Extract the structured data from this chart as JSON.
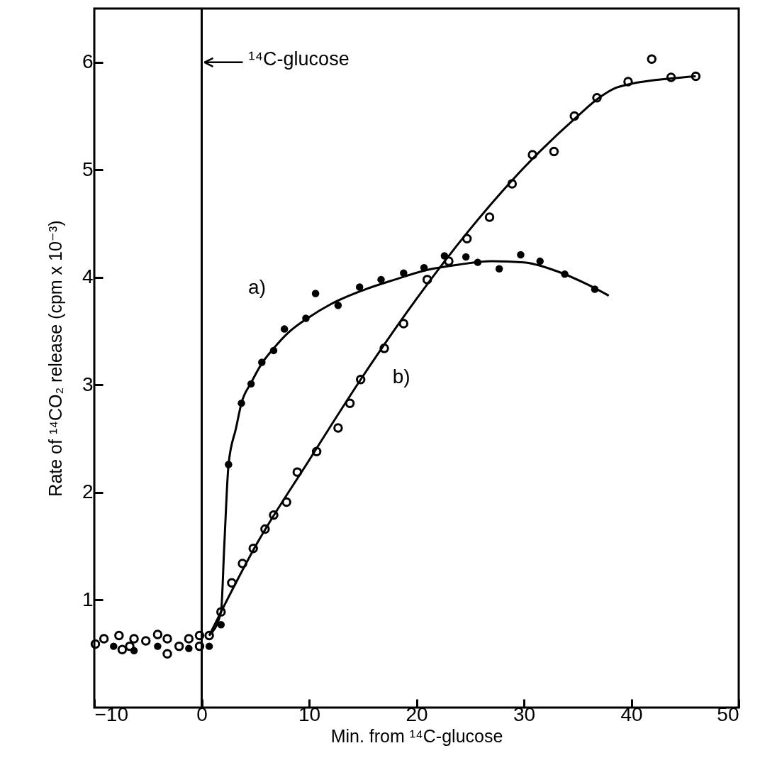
{
  "chart_data": {
    "type": "scatter",
    "xlabel": "Min. from ¹⁴C-glucose",
    "ylabel": "Rate of ¹⁴CO₂ release (cpm x 10⁻³)",
    "xlim": [
      -10,
      50
    ],
    "ylim": [
      0,
      6.5
    ],
    "xticks": [
      -10,
      0,
      10,
      20,
      30,
      40,
      50
    ],
    "yticks": [
      1,
      2,
      3,
      4,
      5,
      6
    ],
    "grid": false,
    "legend": false,
    "ref_lines": [
      {
        "axis": "x",
        "value": 0,
        "color": "#000000"
      }
    ],
    "annotations": [
      {
        "text": "¹⁴C-glucose",
        "x": 0,
        "y": 6
      }
    ],
    "series": [
      {
        "name": "a)",
        "marker": "circle",
        "color": "#000000",
        "x": [
          -8.2,
          -6.3,
          -4.1,
          -1.2,
          0.7,
          1.8,
          2.5,
          3.7,
          4.6,
          5.6,
          6.7,
          7.7,
          9.7,
          10.6,
          12.7,
          14.7,
          16.7,
          18.8,
          20.7,
          22.6,
          24.6,
          25.7,
          27.7,
          29.7,
          31.5,
          33.8,
          36.6
        ],
        "values": [
          0.57,
          0.53,
          0.57,
          0.55,
          0.57,
          0.77,
          2.26,
          2.83,
          3.01,
          3.21,
          3.32,
          3.52,
          3.62,
          3.85,
          3.74,
          3.91,
          3.98,
          4.04,
          4.09,
          4.2,
          4.19,
          4.14,
          4.08,
          4.21,
          4.15,
          4.03,
          3.89
        ]
      },
      {
        "name": "b)",
        "marker": "circle",
        "color": "#000000",
        "x": [
          -9.9,
          -9.1,
          -7.7,
          -7.4,
          -6.7,
          -6.3,
          -5.2,
          -4.1,
          -3.2,
          -3.2,
          -2.1,
          -1.2,
          -0.2,
          -0.2,
          0.7,
          1.8,
          2.8,
          3.8,
          4.8,
          5.9,
          6.7,
          7.9,
          8.9,
          10.7,
          12.7,
          13.8,
          14.8,
          17,
          18.8,
          21,
          23,
          24.7,
          26.8,
          28.9,
          30.8,
          32.8,
          34.7,
          36.8,
          39.7,
          41.9,
          43.7,
          46
        ],
        "values": [
          0.59,
          0.64,
          0.67,
          0.54,
          0.57,
          0.64,
          0.62,
          0.68,
          0.64,
          0.5,
          0.57,
          0.64,
          0.67,
          0.57,
          0.67,
          0.89,
          1.16,
          1.34,
          1.48,
          1.66,
          1.79,
          1.91,
          2.19,
          2.38,
          2.6,
          2.83,
          3.05,
          3.34,
          3.57,
          3.98,
          4.15,
          4.36,
          4.56,
          4.87,
          5.14,
          5.17,
          5.5,
          5.67,
          5.82,
          6.03,
          5.86,
          5.87
        ]
      },
      {
        "type": "line",
        "marker": "none",
        "color": "#000000",
        "x": [
          0.7,
          1.8,
          2.1,
          2.5,
          3.2,
          3.7,
          4.6,
          5.6,
          6.7,
          8,
          10,
          12,
          15,
          18,
          21,
          24,
          27,
          30,
          33,
          36,
          37.9
        ],
        "values": [
          0.67,
          0.89,
          1.5,
          2.26,
          2.6,
          2.83,
          3.02,
          3.2,
          3.34,
          3.48,
          3.63,
          3.75,
          3.88,
          3.98,
          4.07,
          4.12,
          4.15,
          4.14,
          4.06,
          3.93,
          3.83
        ]
      },
      {
        "type": "line",
        "marker": "none",
        "color": "#000000",
        "x": [
          0.7,
          1.8,
          5,
          10,
          15,
          20,
          25,
          30,
          35,
          37,
          38.5,
          40,
          43.7,
          46
        ],
        "values": [
          0.67,
          0.89,
          1.5,
          2.3,
          3.08,
          3.8,
          4.45,
          5.02,
          5.5,
          5.67,
          5.76,
          5.8,
          5.85,
          5.87
        ]
      }
    ]
  }
}
